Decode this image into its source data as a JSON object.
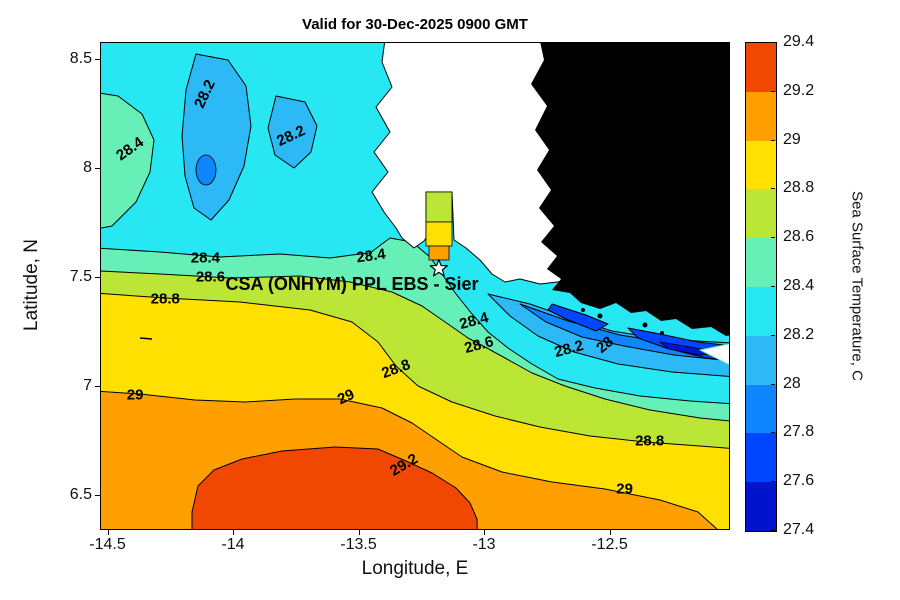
{
  "chart_data": {
    "type": "heatmap",
    "subtype": "filled-contour-map",
    "title": "Valid for 30-Dec-2025 0900 GMT",
    "xlabel": "Longitude, E",
    "ylabel": "Latitude, N",
    "xlim": [
      -14.53,
      -12.02
    ],
    "ylim": [
      6.34,
      8.58
    ],
    "xticks": [
      -14.5,
      -14,
      -13.5,
      -13,
      -12.5
    ],
    "xtick_labels": [
      "-14.5",
      "-14",
      "-13.5",
      "-13",
      "-12.5"
    ],
    "yticks": [
      8.5,
      8,
      7.5,
      7,
      6.5
    ],
    "ytick_labels": [
      "8.5",
      "8",
      "7.5",
      "7",
      "6.5"
    ],
    "grid": false,
    "colorbar": {
      "label": "Sea Surface Temperature, C",
      "min": 27.4,
      "max": 29.4,
      "step": 0.2,
      "ticks": [
        "27.4",
        "27.6",
        "27.8",
        "28",
        "28.2",
        "28.4",
        "28.6",
        "28.8",
        "29",
        "29.2",
        "29.4"
      ],
      "colors": [
        "#0013cd",
        "#0045ff",
        "#0e86ff",
        "#2cb9f5",
        "#26e7f2",
        "#66f0b8",
        "#bce636",
        "#ffe000",
        "#ff9f00",
        "#f04800"
      ]
    },
    "contour_levels": [
      27.6,
      27.8,
      28.0,
      28.2,
      28.4,
      28.6,
      28.8,
      29.0,
      29.2
    ],
    "contour_labels": [
      {
        "text": "28.2",
        "lon": -14.11,
        "lat": 8.34,
        "rot": -65
      },
      {
        "text": "28.2",
        "lon": -13.77,
        "lat": 8.15,
        "rot": -25
      },
      {
        "text": "28.4",
        "lon": -14.41,
        "lat": 8.09,
        "rot": -35
      },
      {
        "text": "28.4",
        "lon": -13.45,
        "lat": 7.6,
        "rot": -8
      },
      {
        "text": "28.4",
        "lon": -14.11,
        "lat": 7.59,
        "rot": 0
      },
      {
        "text": "28.6",
        "lon": -14.09,
        "lat": 7.5,
        "rot": 0
      },
      {
        "text": "28.8",
        "lon": -14.27,
        "lat": 7.4,
        "rot": 0
      },
      {
        "text": "29",
        "lon": -14.39,
        "lat": 6.96,
        "rot": 0
      },
      {
        "text": "29",
        "lon": -13.55,
        "lat": 6.95,
        "rot": -25
      },
      {
        "text": "28.8",
        "lon": -13.35,
        "lat": 7.08,
        "rot": -20
      },
      {
        "text": "28.6",
        "lon": -13.02,
        "lat": 7.19,
        "rot": -15
      },
      {
        "text": "28.4",
        "lon": -13.04,
        "lat": 7.3,
        "rot": -15
      },
      {
        "text": "28.2",
        "lon": -12.66,
        "lat": 7.17,
        "rot": -15
      },
      {
        "text": "28",
        "lon": -12.52,
        "lat": 7.19,
        "rot": -40
      },
      {
        "text": "29.2",
        "lon": -13.32,
        "lat": 6.64,
        "rot": -30
      },
      {
        "text": "28.8",
        "lon": -12.34,
        "lat": 6.75,
        "rot": 0
      },
      {
        "text": "29",
        "lon": -12.44,
        "lat": 6.53,
        "rot": 0
      }
    ],
    "annotation": {
      "text": "CSA (ONHYM) PPL EBS  - Sier",
      "lon": -14.03,
      "lat": 7.47
    },
    "marker": {
      "shape": "pentagram-star",
      "lon": -13.18,
      "lat": 7.54
    },
    "land_color": "#000000",
    "no_data_color": "#ffffff"
  }
}
